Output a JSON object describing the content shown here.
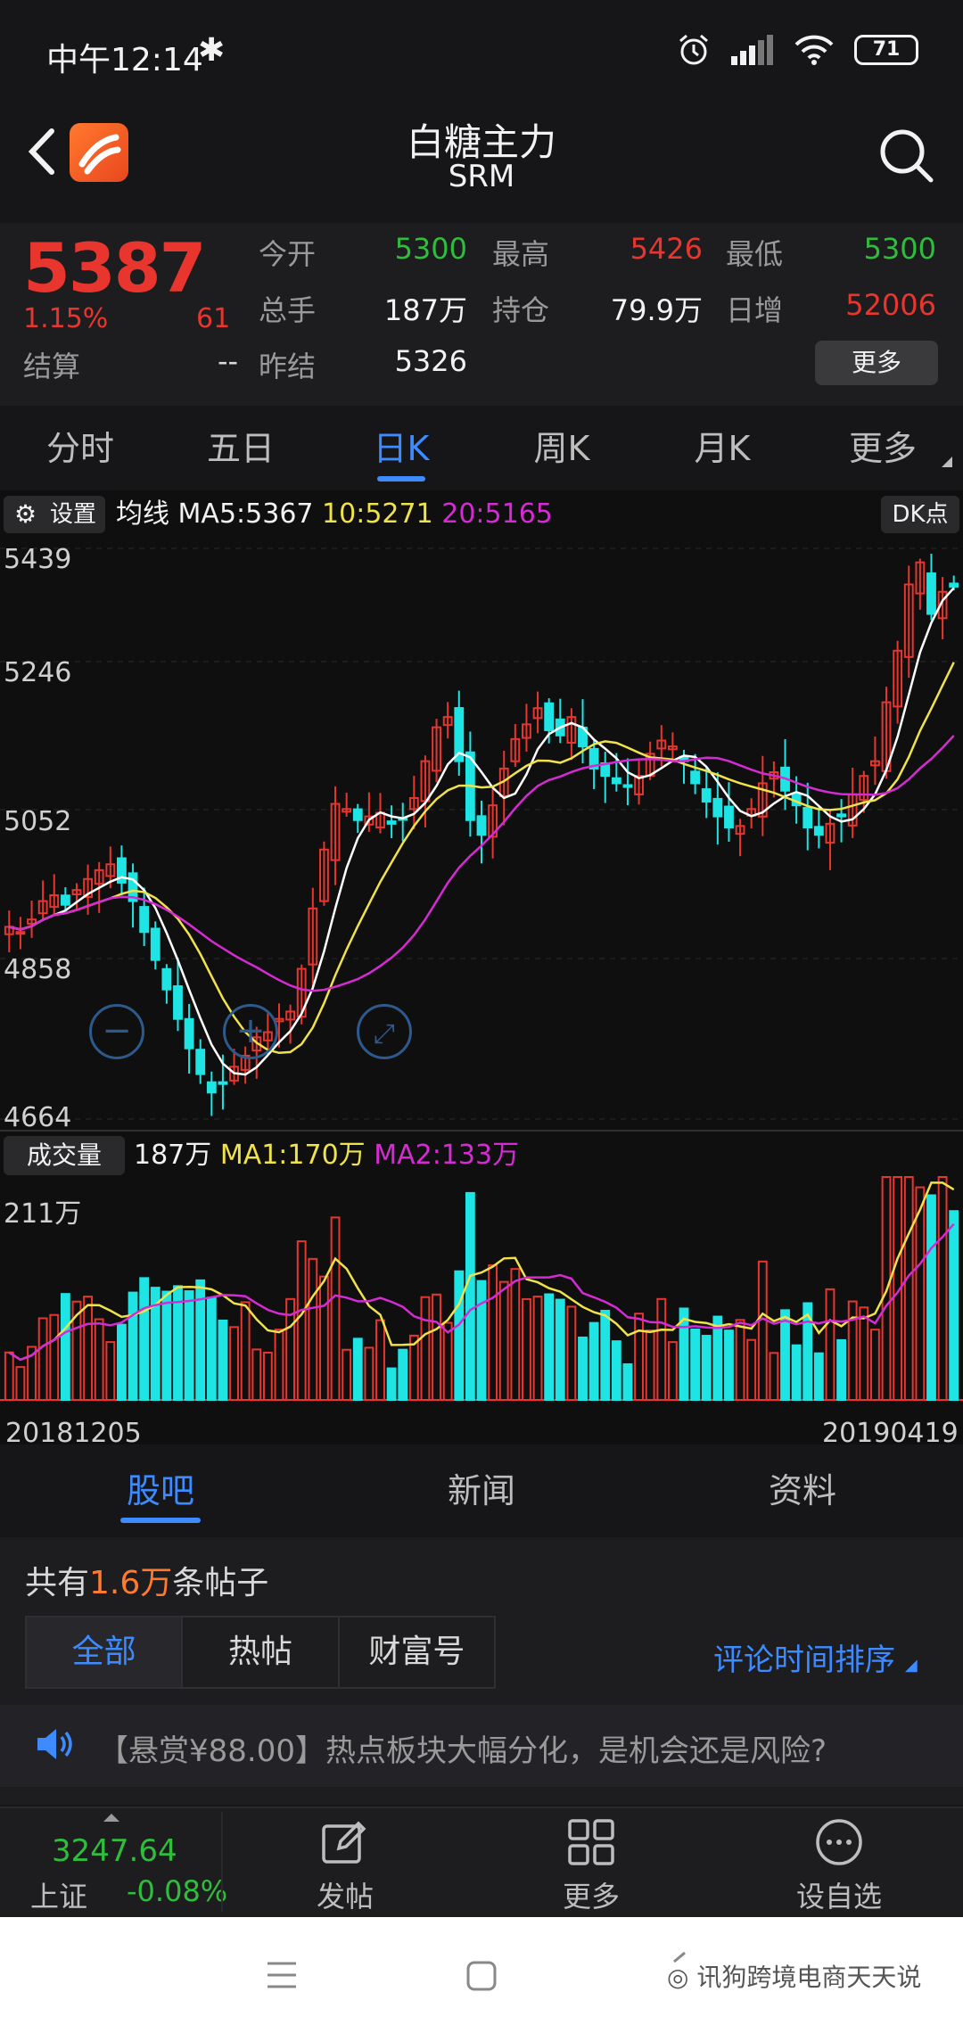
{
  "status_bar": {
    "time": "中午12:14",
    "battery": "71"
  },
  "header": {
    "title": "白糖主力",
    "subtitle": "SRM"
  },
  "quote": {
    "price": "5387",
    "change_pct": "1.15%",
    "change_abs": "61",
    "settle_label": "结算",
    "settle_value": "--",
    "fields": [
      {
        "label": "今开",
        "value": "5300",
        "color": "green"
      },
      {
        "label": "最高",
        "value": "5426",
        "color": "red"
      },
      {
        "label": "最低",
        "value": "5300",
        "color": "green"
      },
      {
        "label": "总手",
        "value": "187万",
        "color": "white"
      },
      {
        "label": "持仓",
        "value": "79.9万",
        "color": "white"
      },
      {
        "label": "日增",
        "value": "52006",
        "color": "red"
      },
      {
        "label": "昨结",
        "value": "5326",
        "color": "white"
      }
    ],
    "more_label": "更多"
  },
  "chart_tabs": [
    "分时",
    "五日",
    "日K",
    "周K",
    "月K",
    "更多"
  ],
  "chart_tab_active": 2,
  "kline": {
    "settings_label": "设置",
    "ma_label": "均线",
    "ma5": "MA5:5367",
    "ma10": "10:5271",
    "ma20": "20:5165",
    "dk_label": "DK点",
    "y_labels": [
      "5439",
      "5246",
      "5052",
      "4858",
      "4664"
    ],
    "volume_label": "成交量",
    "volume_value": "187万",
    "vol_ma1": "MA1:170万",
    "vol_ma2": "MA2:133万",
    "volume_max_label": "211万",
    "date_start": "20181205",
    "date_end": "20190419",
    "colors": {
      "up": "#e8362e",
      "down": "#1ee4e4",
      "ma5": "#ffffff",
      "ma10": "#f0e24a",
      "ma20": "#d52bd2"
    }
  },
  "chart_data": {
    "type": "candlestick",
    "x_range": [
      "20181205",
      "20190419"
    ],
    "ylim": [
      4664,
      5439
    ],
    "closes": [
      4925,
      4918,
      4935,
      4960,
      4968,
      4955,
      4975,
      4990,
      5002,
      5010,
      4985,
      4960,
      4918,
      4880,
      4840,
      4800,
      4760,
      4725,
      4700,
      4712,
      4735,
      4750,
      4775,
      4782,
      4800,
      4810,
      4868,
      4950,
      5030,
      5092,
      5085,
      5070,
      5075,
      5080,
      5065,
      5072,
      5100,
      5150,
      5196,
      5210,
      5150,
      5070,
      5050,
      5090,
      5140,
      5180,
      5200,
      5222,
      5192,
      5185,
      5210,
      5170,
      5140,
      5130,
      5120,
      5115,
      5130,
      5160,
      5178,
      5170,
      5150,
      5120,
      5095,
      5075,
      5060,
      5062,
      5085,
      5120,
      5135,
      5110,
      5090,
      5060,
      5050,
      5065,
      5075,
      5105,
      5130,
      5150,
      5230,
      5300,
      5390,
      5420,
      5350,
      5380,
      5387
    ],
    "ma5_last": 5367,
    "ma10_last": 5271,
    "ma20_last": 5165,
    "volume_max": "211万"
  },
  "content_tabs": [
    "股吧",
    "新闻",
    "资料"
  ],
  "content_tab_active": 0,
  "posts": {
    "count_prefix": "共有",
    "count_num": "1.6万",
    "count_suffix": "条帖子",
    "filters": [
      "全部",
      "热帖",
      "财富号"
    ],
    "filter_active": 0,
    "sort_label": "评论时间排序",
    "notice": "【悬赏¥88.00】热点板块大幅分化，是机会还是风险?"
  },
  "bottom_bar": {
    "index_value": "3247.64",
    "index_name": "上证",
    "index_change": "-0.08%",
    "actions": [
      "发帖",
      "更多",
      "设自选"
    ]
  },
  "watermark": "讯狗跨境电商天天说"
}
